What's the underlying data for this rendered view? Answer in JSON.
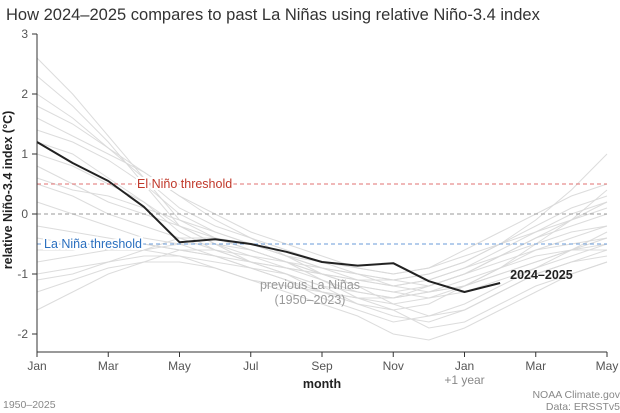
{
  "chart_data": {
    "type": "line",
    "title": "How 2024–2025 compares to past La Niñas using relative Niño-3.4 index",
    "xlabel": "month",
    "ylabel": "relative Niño-3.4 index (°C)",
    "ylim": [
      -2.3,
      3
    ],
    "xlim": [
      0,
      16
    ],
    "y_ticks": [
      3,
      2,
      1,
      0,
      -1,
      -2
    ],
    "x_ticks": [
      {
        "x": 0,
        "label": "Jan"
      },
      {
        "x": 2,
        "label": "Mar"
      },
      {
        "x": 4,
        "label": "May"
      },
      {
        "x": 6,
        "label": "Jul"
      },
      {
        "x": 8,
        "label": "Sep"
      },
      {
        "x": 10,
        "label": "Nov"
      },
      {
        "x": 12,
        "label": "Jan"
      },
      {
        "x": 14,
        "label": "Mar"
      },
      {
        "x": 16,
        "label": "May"
      }
    ],
    "x_sublabel": "+1 year",
    "thresholds": [
      {
        "label": "El Niño threshold",
        "value": 0.5,
        "color": "#e07070"
      },
      {
        "label": "La Niña threshold",
        "value": -0.5,
        "color": "#6a9bd8"
      },
      {
        "value": 0,
        "color": "#999999"
      }
    ],
    "series": [
      {
        "name": "2024–2025",
        "color": "#222222",
        "x": [
          0,
          1,
          2,
          3,
          4,
          5,
          6,
          7,
          8,
          9,
          10,
          11,
          12,
          13
        ],
        "values": [
          1.2,
          0.85,
          0.55,
          0.12,
          -0.47,
          -0.42,
          -0.5,
          -0.63,
          -0.8,
          -0.86,
          -0.82,
          -1.12,
          -1.3,
          -1.15
        ]
      }
    ],
    "background_series_label": "previous La Niñas\n(1950–2023)",
    "background_series_color": "#d8d8d8",
    "background_series": [
      [
        2.6,
        2.0,
        1.3,
        0.6,
        -0.1,
        -0.4,
        -0.6,
        -0.8,
        -0.9,
        -1.0,
        -1.1,
        -1.2,
        -1.0,
        -0.8,
        -0.6,
        -0.5,
        -0.4
      ],
      [
        2.3,
        1.8,
        1.2,
        0.5,
        -0.2,
        -0.5,
        -0.7,
        -0.9,
        -1.1,
        -1.3,
        -1.4,
        -1.3,
        -1.1,
        -0.9,
        -0.6,
        -0.4,
        -0.2
      ],
      [
        2.0,
        1.6,
        1.1,
        0.6,
        0.1,
        -0.2,
        -0.4,
        -0.6,
        -0.8,
        -1.0,
        -1.2,
        -1.3,
        -1.2,
        -1.0,
        -0.8,
        -0.6,
        -0.5
      ],
      [
        1.6,
        1.3,
        1.0,
        0.7,
        0.3,
        -0.1,
        -0.4,
        -0.7,
        -1.0,
        -1.2,
        -1.3,
        -1.4,
        -1.2,
        -0.9,
        -0.7,
        -0.6,
        -0.6
      ],
      [
        1.4,
        1.2,
        0.9,
        0.5,
        0.0,
        -0.3,
        -0.5,
        -0.7,
        -0.8,
        -0.9,
        -1.0,
        -0.9,
        -0.7,
        -0.5,
        -0.3,
        -0.1,
        0.1
      ],
      [
        1.0,
        0.8,
        0.5,
        0.2,
        -0.2,
        -0.5,
        -0.8,
        -1.0,
        -1.2,
        -1.5,
        -1.7,
        -1.8,
        -1.6,
        -1.3,
        -1.0,
        -0.8,
        -0.7
      ],
      [
        0.8,
        0.5,
        0.2,
        0.0,
        -0.2,
        -0.4,
        -0.6,
        -0.8,
        -1.0,
        -1.2,
        -1.3,
        -1.2,
        -1.0,
        -0.7,
        -0.4,
        -0.1,
        0.2
      ],
      [
        0.5,
        0.3,
        0.0,
        -0.2,
        -0.4,
        -0.6,
        -0.8,
        -1.0,
        -1.3,
        -1.5,
        -1.6,
        -1.5,
        -1.2,
        -0.9,
        -0.5,
        -0.1,
        0.4
      ],
      [
        0.2,
        0.0,
        -0.2,
        -0.4,
        -0.5,
        -0.7,
        -0.9,
        -1.1,
        -1.3,
        -1.4,
        -1.5,
        -1.4,
        -1.3,
        -1.1,
        -0.9,
        -0.7,
        -0.5
      ],
      [
        -0.2,
        -0.3,
        -0.4,
        -0.5,
        -0.6,
        -0.7,
        -0.8,
        -0.9,
        -1.0,
        -1.1,
        -1.2,
        -1.1,
        -0.9,
        -0.7,
        -0.5,
        -0.3,
        -0.2
      ],
      [
        -0.6,
        -0.6,
        -0.5,
        -0.5,
        -0.6,
        -0.7,
        -0.9,
        -1.1,
        -1.4,
        -1.6,
        -1.8,
        -1.7,
        -1.5,
        -1.2,
        -0.9,
        -0.6,
        -0.3
      ],
      [
        -1.0,
        -0.9,
        -0.8,
        -0.7,
        -0.7,
        -0.8,
        -0.9,
        -1.0,
        -1.2,
        -1.3,
        -1.4,
        -1.3,
        -1.2,
        -1.0,
        -0.8,
        -0.6,
        -0.4
      ],
      [
        -1.3,
        -1.1,
        -0.9,
        -0.8,
        -0.8,
        -0.9,
        -1.1,
        -1.2,
        -1.3,
        -1.4,
        -1.4,
        -1.2,
        -1.0,
        -0.7,
        -0.4,
        -0.2,
        0.0
      ],
      [
        -1.6,
        -1.3,
        -1.0,
        -0.8,
        -0.6,
        -0.6,
        -0.7,
        -0.8,
        -1.0,
        -1.2,
        -1.5,
        -1.7,
        -1.6,
        -1.3,
        -1.0,
        -0.8,
        -0.6
      ],
      [
        1.2,
        1.0,
        0.6,
        0.2,
        -0.3,
        -0.6,
        -0.8,
        -0.9,
        -1.0,
        -1.1,
        -1.1,
        -1.0,
        -0.8,
        -0.5,
        -0.2,
        0.1,
        0.3
      ],
      [
        -0.4,
        -0.5,
        -0.6,
        -0.6,
        -0.5,
        -0.5,
        -0.6,
        -0.8,
        -1.1,
        -1.4,
        -1.6,
        -1.9,
        -1.8,
        -1.5,
        -1.2,
        -1.0,
        -0.8
      ],
      [
        0.6,
        0.4,
        0.3,
        0.1,
        -0.1,
        -0.3,
        -0.5,
        -0.7,
        -0.9,
        -1.1,
        -1.2,
        -1.1,
        -0.9,
        -0.6,
        -0.3,
        0.0,
        0.2
      ],
      [
        -0.8,
        -0.7,
        -0.6,
        -0.6,
        -0.7,
        -0.9,
        -1.1,
        -1.3,
        -1.5,
        -1.7,
        -2.0,
        -2.1,
        -1.9,
        -1.6,
        -1.3,
        -1.0,
        -0.8
      ],
      [
        1.8,
        1.5,
        1.1,
        0.7,
        0.3,
        0.0,
        -0.3,
        -0.5,
        -0.7,
        -0.9,
        -1.0,
        -0.9,
        -0.6,
        -0.3,
        0.0,
        0.3,
        0.5
      ],
      [
        -1.1,
        -1.0,
        -0.8,
        -0.6,
        -0.4,
        -0.4,
        -0.5,
        -0.7,
        -0.9,
        -1.0,
        -1.1,
        -1.0,
        -0.8,
        -0.5,
        -0.1,
        0.4,
        1.0
      ]
    ]
  },
  "footer": {
    "years": "1950–2025",
    "credit": "NOAA Climate.gov",
    "source": "Data: ERSSTv5"
  }
}
